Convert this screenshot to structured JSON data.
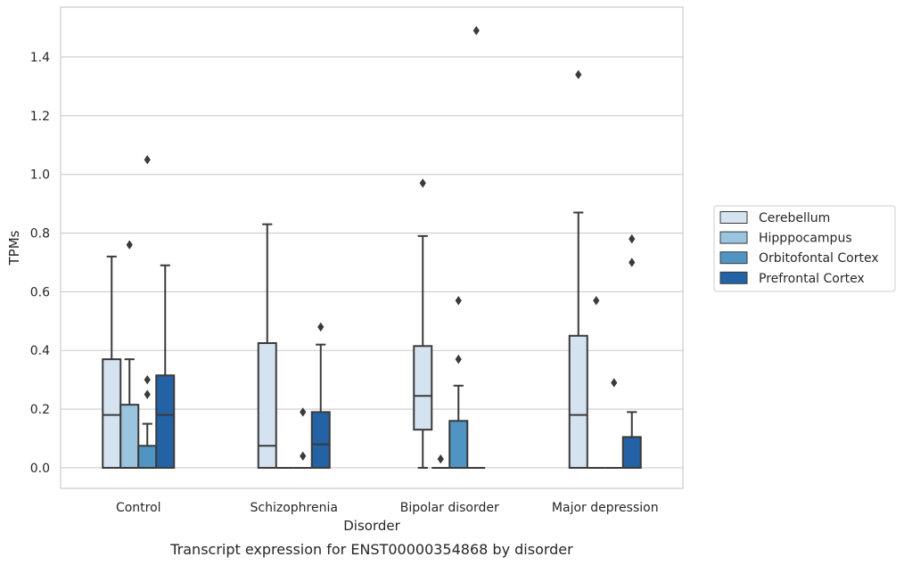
{
  "caption": "Transcript expression for ENST00000354868 by disorder",
  "chart_data": {
    "type": "box",
    "xlabel": "Disorder",
    "ylabel": "TPMs",
    "ylim": [
      -0.07,
      1.57
    ],
    "yticks": [
      0.0,
      0.2,
      0.4,
      0.6,
      0.8,
      1.0,
      1.2,
      1.4
    ],
    "ytick_labels": [
      "0.0",
      "0.2",
      "0.4",
      "0.6",
      "0.8",
      "1.0",
      "1.2",
      "1.4"
    ],
    "grid": "horizontal",
    "legend_position": "right",
    "categories": [
      "Control",
      "Schizophrenia",
      "Bipolar disorder",
      "Major depression"
    ],
    "series": [
      {
        "name": "Cerebellum",
        "color": "#d5e3f0",
        "boxes": [
          {
            "q1": 0.0,
            "median": 0.18,
            "q3": 0.37,
            "whisker_low": 0.0,
            "whisker_high": 0.72,
            "outliers": []
          },
          {
            "q1": 0.0,
            "median": 0.075,
            "q3": 0.425,
            "whisker_low": 0.0,
            "whisker_high": 0.83,
            "outliers": []
          },
          {
            "q1": 0.13,
            "median": 0.245,
            "q3": 0.415,
            "whisker_low": 0.0,
            "whisker_high": 0.79,
            "outliers": [
              0.97
            ]
          },
          {
            "q1": 0.0,
            "median": 0.18,
            "q3": 0.45,
            "whisker_low": 0.0,
            "whisker_high": 0.87,
            "outliers": [
              1.34
            ]
          }
        ]
      },
      {
        "name": "Hipppocampus",
        "color": "#9bc4de",
        "boxes": [
          {
            "q1": 0.0,
            "median": 0.0,
            "q3": 0.215,
            "whisker_low": 0.0,
            "whisker_high": 0.37,
            "outliers": [
              0.76
            ]
          },
          {
            "q1": 0.0,
            "median": 0.0,
            "q3": 0.0,
            "whisker_low": 0.0,
            "whisker_high": 0.0,
            "outliers": []
          },
          {
            "q1": 0.0,
            "median": 0.0,
            "q3": 0.0,
            "whisker_low": 0.0,
            "whisker_high": 0.0,
            "outliers": [
              0.03
            ]
          },
          {
            "q1": 0.0,
            "median": 0.0,
            "q3": 0.0,
            "whisker_low": 0.0,
            "whisker_high": 0.0,
            "outliers": [
              0.57
            ]
          }
        ]
      },
      {
        "name": "Orbitofontal Cortex",
        "color": "#5094c4",
        "boxes": [
          {
            "q1": 0.0,
            "median": 0.0,
            "q3": 0.075,
            "whisker_low": 0.0,
            "whisker_high": 0.15,
            "outliers": [
              0.25,
              0.3,
              1.05
            ]
          },
          {
            "q1": 0.0,
            "median": 0.0,
            "q3": 0.0,
            "whisker_low": 0.0,
            "whisker_high": 0.0,
            "outliers": [
              0.04,
              0.19
            ]
          },
          {
            "q1": 0.0,
            "median": 0.0,
            "q3": 0.16,
            "whisker_low": 0.0,
            "whisker_high": 0.28,
            "outliers": [
              0.37,
              0.57
            ]
          },
          {
            "q1": 0.0,
            "median": 0.0,
            "q3": 0.0,
            "whisker_low": 0.0,
            "whisker_high": 0.0,
            "outliers": [
              0.29
            ]
          }
        ]
      },
      {
        "name": "Prefrontal Cortex",
        "color": "#2462a6",
        "boxes": [
          {
            "q1": 0.0,
            "median": 0.18,
            "q3": 0.315,
            "whisker_low": 0.0,
            "whisker_high": 0.69,
            "outliers": []
          },
          {
            "q1": 0.0,
            "median": 0.08,
            "q3": 0.19,
            "whisker_low": 0.0,
            "whisker_high": 0.42,
            "outliers": [
              0.48
            ]
          },
          {
            "q1": 0.0,
            "median": 0.0,
            "q3": 0.0,
            "whisker_low": 0.0,
            "whisker_high": 0.0,
            "outliers": [
              1.49
            ]
          },
          {
            "q1": 0.0,
            "median": 0.0,
            "q3": 0.105,
            "whisker_low": 0.0,
            "whisker_high": 0.19,
            "outliers": [
              0.7,
              0.78
            ]
          }
        ]
      }
    ]
  }
}
